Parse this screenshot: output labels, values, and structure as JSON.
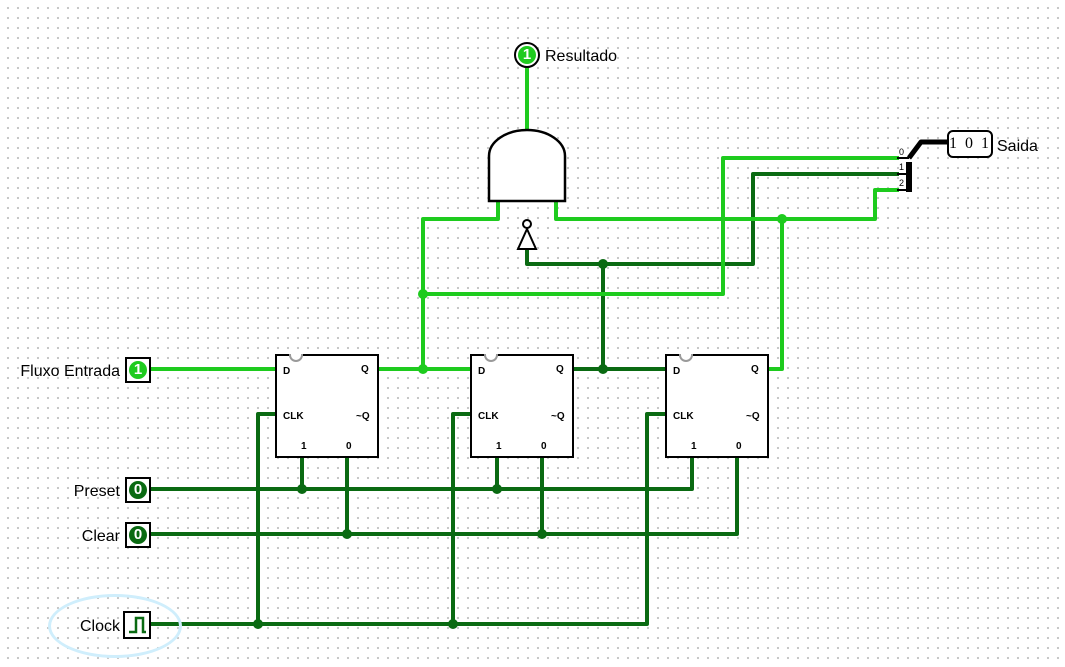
{
  "colors": {
    "wire_on": "#1ecb1e",
    "wire_off": "#0a6a12",
    "bus": "#000000",
    "led_on": "#1ecb1e",
    "led_off": "#0a6a12",
    "clock_selected": "#cfeefc"
  },
  "inputs": {
    "fluxo": {
      "label": "Fluxo Entrada",
      "value": "1"
    },
    "preset": {
      "label": "Preset",
      "value": "0"
    },
    "clear": {
      "label": "Clear",
      "value": "0"
    },
    "clock": {
      "label": "Clock",
      "icon": "clock-waveform-icon"
    }
  },
  "outputs": {
    "resultado": {
      "label": "Resultado",
      "value": "1"
    },
    "saida": {
      "label": "Saida",
      "value": "1 0 1",
      "bus_bits": [
        "0",
        "1",
        "2"
      ]
    }
  },
  "flipflop": {
    "d": "D",
    "q": "Q",
    "clk": "CLK",
    "nq": "~Q",
    "set": "1",
    "reset": "0"
  }
}
